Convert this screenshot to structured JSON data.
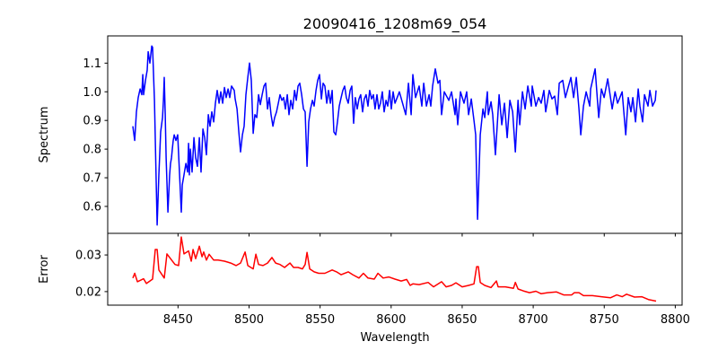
{
  "chart_data": [
    {
      "type": "line",
      "title": "20090416_1208m69_054",
      "xlabel": "",
      "ylabel": "Spectrum",
      "xlim": [
        8400.5,
        8804.8
      ],
      "ylim": [
        0.506,
        1.195
      ],
      "xticks": [
        8450,
        8500,
        8550,
        8600,
        8650,
        8700,
        8750,
        8800
      ],
      "xtick_labels_visible": false,
      "yticks": [
        0.6,
        0.7,
        0.8,
        0.9,
        1.0,
        1.1
      ],
      "ytick_labels": [
        "0.6",
        "0.7",
        "0.8",
        "0.9",
        "1.0",
        "1.1"
      ],
      "grid": false,
      "series": [
        {
          "name": "Spectrum",
          "color": "#0000ff",
          "x": [
            8418.2,
            8419.5,
            8420.7,
            8422.0,
            8423.3,
            8424.5,
            8425.2,
            8425.8,
            8427.1,
            8428.3,
            8429.0,
            8430.2,
            8431.5,
            8432.1,
            8433.4,
            8434.6,
            8435.3,
            8436.5,
            8437.8,
            8439.1,
            8439.7,
            8440.3,
            8441.0,
            8441.6,
            8442.9,
            8444.1,
            8444.7,
            8445.4,
            8446.0,
            8446.6,
            8447.3,
            8448.5,
            8449.8,
            8451.1,
            8452.3,
            8453.0,
            8454.2,
            8455.5,
            8456.8,
            8457.4,
            8458.0,
            8458.7,
            8459.9,
            8461.2,
            8462.4,
            8463.7,
            8465.0,
            8466.2,
            8467.5,
            8468.8,
            8470.0,
            8471.3,
            8472.5,
            8473.8,
            8475.1,
            8476.3,
            8477.6,
            8478.9,
            8480.1,
            8481.4,
            8482.7,
            8483.9,
            8485.2,
            8486.4,
            8487.7,
            8489.6,
            8490.2,
            8491.5,
            8492.8,
            8494.0,
            8495.3,
            8496.5,
            8497.8,
            8499.1,
            8500.3,
            8501.6,
            8502.9,
            8504.1,
            8505.4,
            8506.7,
            8507.9,
            8509.2,
            8510.5,
            8511.7,
            8513.0,
            8514.2,
            8515.5,
            8516.8,
            8518.0,
            8519.3,
            8520.6,
            8521.8,
            8523.1,
            8524.3,
            8525.6,
            8526.9,
            8528.1,
            8529.4,
            8530.7,
            8532.0,
            8533.2,
            8534.5,
            8535.7,
            8537.0,
            8538.3,
            8539.5,
            8540.8,
            8542.0,
            8543.3,
            8544.6,
            8545.8,
            8547.1,
            8548.3,
            8549.6,
            8550.9,
            8552.1,
            8553.4,
            8554.7,
            8555.9,
            8557.2,
            8558.5,
            8559.7,
            8561.0,
            8562.2,
            8563.5,
            8564.8,
            8566.0,
            8567.3,
            8568.5,
            8569.8,
            8571.1,
            8572.3,
            8573.6,
            8574.8,
            8576.1,
            8577.4,
            8578.6,
            8579.9,
            8581.1,
            8582.4,
            8583.7,
            8584.9,
            8586.2,
            8587.5,
            8588.7,
            8590.0,
            8591.3,
            8592.5,
            8593.8,
            8595.1,
            8596.4,
            8597.6,
            8598.9,
            8600.1,
            8601.4,
            8602.7,
            8605.8,
            8610.3,
            8612.2,
            8614.1,
            8615.3,
            8617.2,
            8619.7,
            8621.6,
            8622.9,
            8624.8,
            8626.7,
            8627.9,
            8629.2,
            8631.1,
            8633.0,
            8634.3,
            8635.5,
            8637.4,
            8640.6,
            8642.5,
            8645.0,
            8645.6,
            8646.9,
            8648.8,
            8651.3,
            8653.2,
            8654.5,
            8656.4,
            8658.3,
            8659.5,
            8660.8,
            8662.7,
            8664.6,
            8665.9,
            8667.7,
            8668.4,
            8670.3,
            8671.5,
            8673.4,
            8676.0,
            8677.9,
            8679.8,
            8681.7,
            8683.6,
            8685.5,
            8687.4,
            8689.3,
            8690.5,
            8692.4,
            8694.3,
            8696.2,
            8698.7,
            8699.3,
            8701.9,
            8703.8,
            8705.6,
            8707.5,
            8708.8,
            8711.3,
            8713.2,
            8715.1,
            8717.0,
            8718.3,
            8720.8,
            8722.7,
            8724.6,
            8726.5,
            8728.4,
            8730.3,
            8732.2,
            8733.5,
            8735.4,
            8737.3,
            8739.8,
            8740.4,
            8743.6,
            8746.1,
            8748.0,
            8749.9,
            8752.4,
            8755.6,
            8757.6,
            8759.4,
            8762.6,
            8765.1,
            8766.9,
            8768.8,
            8770.1,
            8772.0,
            8773.9,
            8775.1,
            8777.0,
            8778.3,
            8780.8,
            8782.1,
            8784.0,
            8785.9,
            8786.5
          ],
          "y": [
            0.88,
            0.83,
            0.93,
            0.98,
            1.01,
            0.99,
            1.06,
            0.99,
            1.04,
            1.075,
            1.14,
            1.1,
            1.16,
            1.155,
            0.97,
            0.69,
            0.535,
            0.71,
            0.86,
            0.91,
            0.97,
            1.05,
            0.92,
            0.77,
            0.58,
            0.71,
            0.75,
            0.77,
            0.8,
            0.83,
            0.85,
            0.83,
            0.85,
            0.71,
            0.58,
            0.675,
            0.71,
            0.75,
            0.72,
            0.82,
            0.71,
            0.8,
            0.72,
            0.84,
            0.77,
            0.74,
            0.84,
            0.72,
            0.87,
            0.84,
            0.78,
            0.92,
            0.88,
            0.93,
            0.895,
            0.96,
            1.005,
            0.96,
            1.0,
            0.96,
            1.015,
            0.98,
            1.01,
            0.98,
            1.02,
            1.005,
            0.975,
            0.94,
            0.86,
            0.79,
            0.85,
            0.88,
            0.99,
            1.05,
            1.1,
            1.04,
            0.855,
            0.92,
            0.91,
            0.99,
            0.955,
            0.99,
            1.02,
            1.03,
            0.94,
            0.98,
            0.92,
            0.88,
            0.91,
            0.93,
            0.96,
            0.99,
            0.97,
            0.98,
            0.94,
            0.99,
            0.92,
            0.97,
            0.94,
            1.005,
            0.97,
            1.02,
            1.03,
            0.99,
            0.94,
            0.93,
            0.74,
            0.895,
            0.94,
            0.97,
            0.95,
            1.005,
            1.04,
            1.06,
            0.975,
            1.03,
            1.02,
            0.96,
            1.005,
            0.96,
            1.005,
            0.86,
            0.85,
            0.895,
            0.95,
            0.98,
            1.005,
            1.02,
            0.98,
            0.96,
            1.005,
            1.02,
            0.89,
            0.98,
            0.94,
            0.975,
            0.99,
            0.93,
            0.975,
            0.99,
            0.95,
            1.005,
            0.975,
            0.99,
            0.94,
            0.99,
            0.94,
            0.96,
            1.0,
            0.93,
            0.97,
            0.95,
            1.005,
            0.94,
            1.0,
            0.96,
            1.0,
            0.92,
            1.03,
            0.92,
            1.06,
            0.98,
            1.02,
            0.95,
            1.03,
            0.95,
            0.99,
            0.95,
            1.02,
            1.08,
            1.03,
            1.04,
            0.92,
            1.0,
            0.97,
            1.0,
            0.92,
            0.975,
            0.885,
            1.0,
            0.96,
            1.0,
            0.92,
            0.975,
            0.9,
            0.85,
            0.555,
            0.85,
            0.94,
            0.91,
            1.0,
            0.92,
            0.965,
            0.92,
            0.78,
            0.99,
            0.885,
            0.96,
            0.84,
            0.97,
            0.93,
            0.79,
            0.97,
            0.885,
            1.0,
            0.94,
            1.02,
            0.95,
            1.02,
            0.95,
            0.98,
            0.96,
            1.005,
            0.93,
            1.005,
            0.975,
            0.985,
            0.92,
            1.03,
            1.04,
            0.98,
            1.015,
            1.05,
            0.98,
            1.05,
            0.94,
            0.85,
            0.95,
            1.0,
            0.95,
            1.01,
            1.08,
            0.91,
            1.01,
            0.98,
            1.045,
            0.94,
            1.0,
            0.96,
            1.0,
            0.85,
            0.98,
            0.93,
            0.98,
            0.895,
            1.01,
            0.95,
            0.895,
            0.99,
            0.95,
            1.005,
            0.95,
            0.97,
            1.005
          ]
        }
      ]
    },
    {
      "type": "line",
      "title": "",
      "xlabel": "Wavelength",
      "ylabel": "Error",
      "xlim": [
        8400.5,
        8804.8
      ],
      "ylim": [
        0.0163,
        0.0359
      ],
      "xticks": [
        8450,
        8500,
        8550,
        8600,
        8650,
        8700,
        8750,
        8800
      ],
      "xtick_labels": [
        "8450",
        "8500",
        "8550",
        "8600",
        "8650",
        "8700",
        "8750",
        "8800"
      ],
      "yticks": [
        0.02,
        0.03
      ],
      "ytick_labels": [
        "0.02",
        "0.03"
      ],
      "grid": false,
      "series": [
        {
          "name": "Error",
          "color": "#ff0000",
          "x": [
            8418.2,
            8419.5,
            8421.4,
            8425.8,
            8427.7,
            8432.1,
            8434.0,
            8435.3,
            8436.5,
            8440.3,
            8442.2,
            8444.7,
            8447.9,
            8450.4,
            8452.3,
            8454.2,
            8457.4,
            8459.3,
            8460.6,
            8462.4,
            8465.0,
            8466.9,
            8468.1,
            8470.0,
            8471.9,
            8475.1,
            8478.2,
            8482.7,
            8487.1,
            8490.9,
            8494.0,
            8497.2,
            8499.1,
            8502.9,
            8504.8,
            8506.7,
            8509.8,
            8513.0,
            8516.1,
            8518.7,
            8521.8,
            8525.0,
            8528.8,
            8531.3,
            8534.5,
            8537.6,
            8539.5,
            8540.8,
            8542.7,
            8545.8,
            8549.0,
            8553.4,
            8558.5,
            8561.6,
            8564.8,
            8569.8,
            8573.0,
            8577.4,
            8580.5,
            8583.7,
            8588.1,
            8590.7,
            8594.4,
            8598.3,
            8602.7,
            8607.1,
            8610.9,
            8613.4,
            8615.3,
            8619.7,
            8626.0,
            8629.8,
            8635.5,
            8638.7,
            8642.5,
            8645.6,
            8650.0,
            8654.5,
            8658.3,
            8660.2,
            8661.4,
            8662.7,
            8665.9,
            8670.3,
            8674.1,
            8675.3,
            8680.4,
            8686.1,
            8687.4,
            8689.3,
            8693.0,
            8697.4,
            8701.9,
            8705.6,
            8710.1,
            8716.4,
            8721.4,
            8727.1,
            8729.0,
            8732.2,
            8735.4,
            8741.7,
            8748.0,
            8754.3,
            8758.8,
            8762.6,
            8765.7,
            8771.3,
            8776.4,
            8781.4,
            8786.5
          ],
          "y": [
            0.0237,
            0.025,
            0.0227,
            0.0235,
            0.0222,
            0.0234,
            0.0315,
            0.0315,
            0.0259,
            0.0237,
            0.0303,
            0.029,
            0.0274,
            0.0271,
            0.0349,
            0.0303,
            0.0311,
            0.0283,
            0.0315,
            0.029,
            0.0324,
            0.0295,
            0.0308,
            0.0286,
            0.0302,
            0.0286,
            0.0286,
            0.0283,
            0.0278,
            0.0271,
            0.0278,
            0.0308,
            0.0271,
            0.0262,
            0.0302,
            0.0274,
            0.0271,
            0.0278,
            0.0293,
            0.0278,
            0.0274,
            0.0266,
            0.0278,
            0.0266,
            0.0266,
            0.0262,
            0.0274,
            0.0307,
            0.0262,
            0.0254,
            0.025,
            0.025,
            0.0259,
            0.0254,
            0.0246,
            0.0254,
            0.0246,
            0.0237,
            0.025,
            0.0237,
            0.0234,
            0.025,
            0.0237,
            0.024,
            0.0234,
            0.0229,
            0.0233,
            0.0217,
            0.0221,
            0.0219,
            0.0225,
            0.0213,
            0.0227,
            0.0213,
            0.0217,
            0.0224,
            0.0213,
            0.0217,
            0.0221,
            0.0268,
            0.0268,
            0.0225,
            0.0217,
            0.0211,
            0.0229,
            0.0213,
            0.0213,
            0.0209,
            0.0225,
            0.0207,
            0.0202,
            0.0197,
            0.0201,
            0.0194,
            0.0197,
            0.0199,
            0.0191,
            0.0191,
            0.0197,
            0.0197,
            0.0189,
            0.0189,
            0.0186,
            0.0183,
            0.0191,
            0.0186,
            0.0193,
            0.0185,
            0.0186,
            0.0178,
            0.0174
          ]
        }
      ]
    }
  ]
}
